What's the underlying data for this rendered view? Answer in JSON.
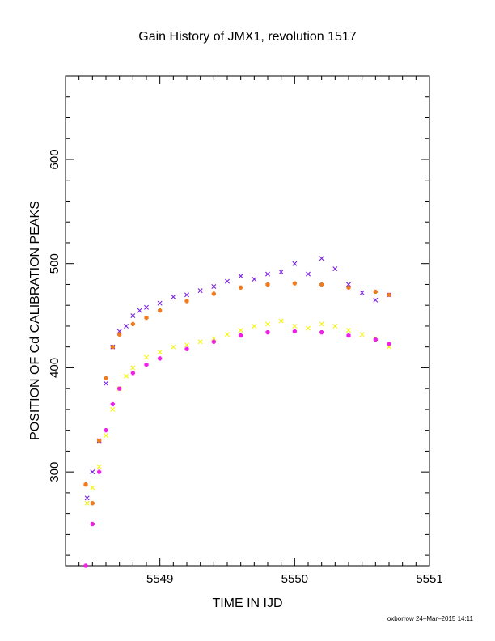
{
  "chart_data": {
    "type": "scatter",
    "title": "Gain History of JMX1, revolution 1517",
    "xlabel": "TIME IN IJD",
    "ylabel": "POSITION OF Cd CALIBRATION PEAKS",
    "xlim": [
      5548.3,
      5551
    ],
    "ylim": [
      210,
      680
    ],
    "xticks": [
      "5549",
      "5550",
      "5551"
    ],
    "yticks": [
      "300",
      "400",
      "500",
      "600"
    ],
    "grid": false,
    "colors": {
      "upper_points": "#7b1fe6",
      "lower_points": "#f5f50a",
      "upper_curve": "#f07a1e",
      "lower_curve": "#f01ee6"
    },
    "series": [
      {
        "marker": "x",
        "color": "#7b1fe6",
        "x": [
          5548.46,
          5548.5,
          5548.55,
          5548.6,
          5548.65,
          5548.7,
          5548.75,
          5548.8,
          5548.85,
          5548.9,
          5549.0,
          5549.1,
          5549.2,
          5549.3,
          5549.4,
          5549.5,
          5549.6,
          5549.7,
          5549.8,
          5549.9,
          5550.0,
          5550.1,
          5550.2,
          5550.3,
          5550.4,
          5550.5,
          5550.6,
          5550.7
        ],
        "y": [
          275,
          300,
          330,
          385,
          420,
          435,
          440,
          450,
          455,
          458,
          462,
          468,
          470,
          474,
          478,
          483,
          488,
          485,
          490,
          492,
          500,
          490,
          505,
          495,
          480,
          472,
          465,
          470
        ]
      },
      {
        "marker": "x",
        "color": "#f5f50a",
        "x": [
          5548.46,
          5548.5,
          5548.55,
          5548.6,
          5548.65,
          5548.7,
          5548.75,
          5548.8,
          5548.9,
          5549.0,
          5549.1,
          5549.2,
          5549.3,
          5549.4,
          5549.5,
          5549.6,
          5549.7,
          5549.8,
          5549.9,
          5550.0,
          5550.1,
          5550.2,
          5550.3,
          5550.4,
          5550.5,
          5550.6,
          5550.7
        ],
        "y": [
          270,
          285,
          305,
          335,
          360,
          380,
          392,
          400,
          410,
          415,
          420,
          422,
          425,
          428,
          432,
          436,
          440,
          442,
          445,
          440,
          438,
          442,
          440,
          436,
          432,
          428,
          420
        ]
      },
      {
        "marker": "+",
        "color": "#f07a1e",
        "x": [
          5548.45,
          5548.5,
          5548.55,
          5548.6,
          5548.65,
          5548.7,
          5548.8,
          5548.9,
          5549.0,
          5549.2,
          5549.4,
          5549.6,
          5549.8,
          5550.0,
          5550.2,
          5550.4,
          5550.6,
          5550.7
        ],
        "y": [
          288,
          270,
          330,
          390,
          420,
          432,
          442,
          448,
          455,
          464,
          471,
          477,
          480,
          481,
          480,
          477,
          473,
          470
        ]
      },
      {
        "marker": "+",
        "color": "#f01ee6",
        "x": [
          5548.45,
          5548.5,
          5548.55,
          5548.6,
          5548.65,
          5548.7,
          5548.8,
          5548.9,
          5549.0,
          5549.2,
          5549.4,
          5549.6,
          5549.8,
          5550.0,
          5550.2,
          5550.4,
          5550.6,
          5550.7
        ],
        "y": [
          210,
          250,
          300,
          340,
          365,
          380,
          395,
          403,
          409,
          418,
          425,
          431,
          434,
          435,
          434,
          431,
          427,
          423
        ]
      }
    ]
  },
  "footer": "oxborrow 24–Mar–2015 14:11"
}
